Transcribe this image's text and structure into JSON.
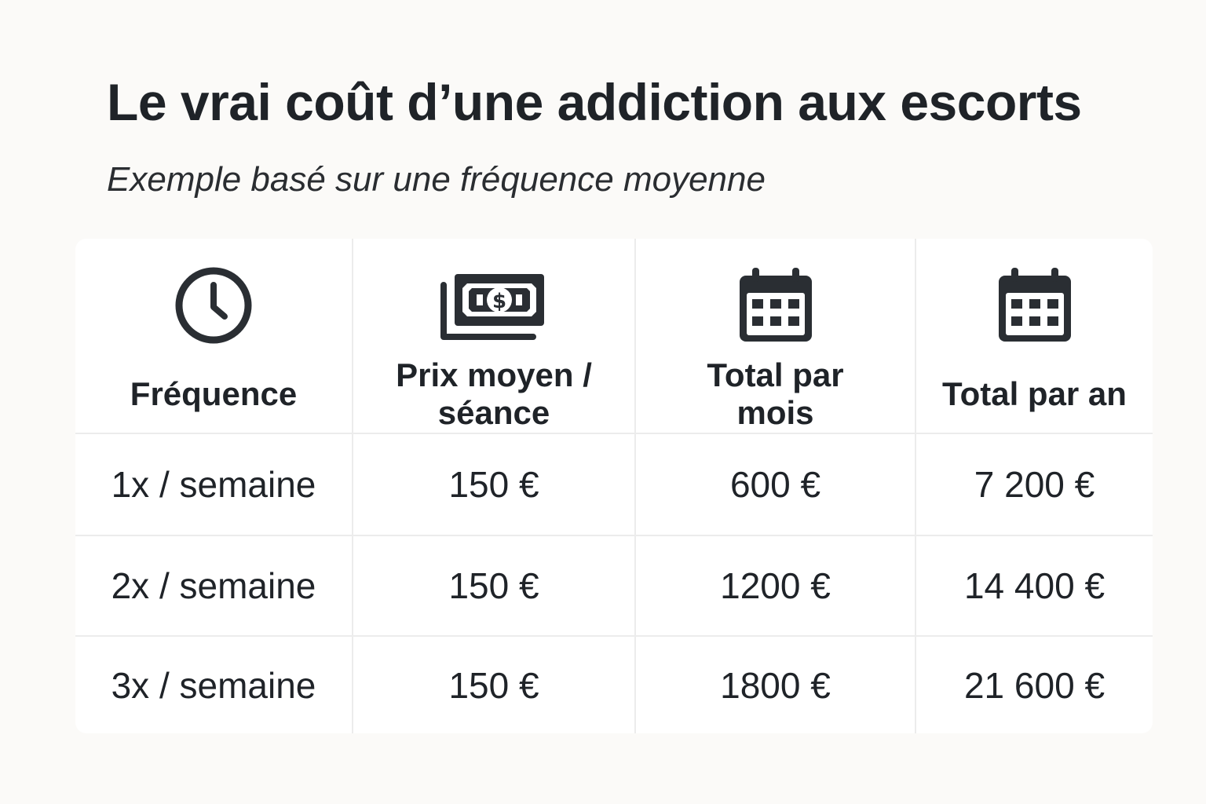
{
  "title": "Le vrai coût d’une addiction aux escorts",
  "subtitle": "Exemple basé sur une fréquence moyenne",
  "chart_data": {
    "type": "table",
    "columns": [
      {
        "label": "Fréquence",
        "icon": "clock-icon"
      },
      {
        "label": "Prix moyen / séance",
        "icon": "money-icon"
      },
      {
        "label": "Total par mois",
        "icon": "calendar-icon"
      },
      {
        "label": "Total par an",
        "icon": "calendar-icon"
      }
    ],
    "rows": [
      [
        "1x / semaine",
        "150 €",
        "600 €",
        "7 200 €"
      ],
      [
        "2x / semaine",
        "150 €",
        "1200 €",
        "14 400 €"
      ],
      [
        "3x / semaine",
        "150 €",
        "1800 €",
        "21 600 €"
      ]
    ]
  },
  "colors": {
    "icon": "#2a2e33",
    "text": "#1f2328",
    "grid": "#ececec",
    "background": "#fbfaf8"
  }
}
